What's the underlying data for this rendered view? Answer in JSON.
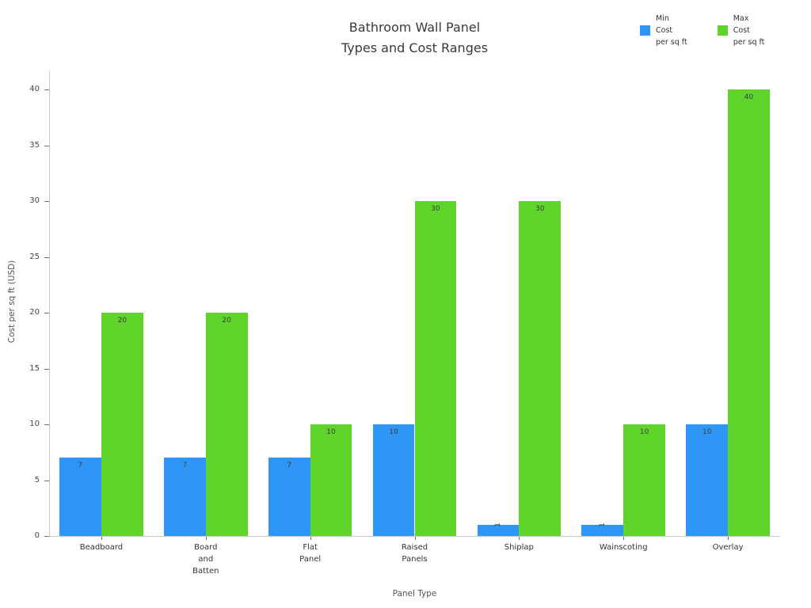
{
  "title_lines": [
    "Bathroom Wall Panel",
    "Types and Cost Ranges"
  ],
  "chart_data": {
    "type": "bar",
    "title": "Bathroom Wall Panel Types and Cost Ranges",
    "xlabel": "Panel Type",
    "ylabel": "Cost per sq ft (USD)",
    "categories": [
      "Beadboard",
      "Board and Batten",
      "Flat Panel",
      "Raised Panels",
      "Shiplap",
      "Wainscoting",
      "Overlay"
    ],
    "category_tick_lines": [
      [
        "Beadboard"
      ],
      [
        "Board",
        "and",
        "Batten"
      ],
      [
        "Flat",
        "Panel"
      ],
      [
        "Raised",
        "Panels"
      ],
      [
        "Shiplap"
      ],
      [
        "Wainscoting"
      ],
      [
        "Overlay"
      ]
    ],
    "series": [
      {
        "name": "Min Cost per sq ft",
        "legend_lines": [
          "Min",
          "Cost",
          "per sq ft"
        ],
        "color": "#2e96f5",
        "values": [
          7,
          7,
          7,
          10,
          1,
          1,
          10
        ]
      },
      {
        "name": "Max Cost per sq ft",
        "legend_lines": [
          "Max",
          "Cost",
          "per sq ft"
        ],
        "color": "#5fd52c",
        "values": [
          20,
          20,
          10,
          30,
          30,
          10,
          40
        ]
      }
    ],
    "ylim": [
      0,
      40
    ],
    "yticks": [
      0,
      5,
      10,
      15,
      20,
      25,
      30,
      35,
      40
    ],
    "grid": false,
    "legend_position": "top-right",
    "bar_labels_shown": true
  }
}
